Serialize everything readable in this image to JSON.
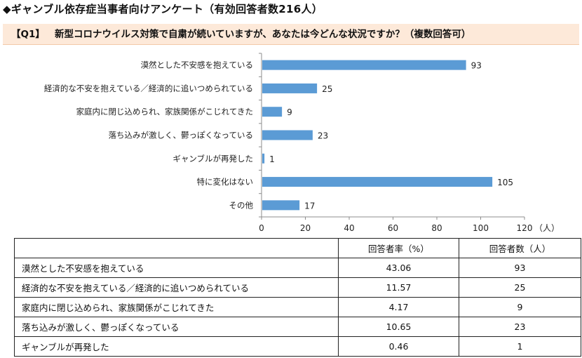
{
  "page": {
    "title": "◆ギャンブル依存症当事者向けアンケート（有効回答者数216人）",
    "question_label": "【Q1】",
    "question_text": "新型コロナウイルス対策で自粛が続いていますが、あなたは今どんな状況ですか？（複数回答可）"
  },
  "chart_data": {
    "type": "bar",
    "orientation": "horizontal",
    "categories": [
      "漠然とした不安感を抱えている",
      "経済的な不安を抱えている／経済的に追いつめられている",
      "家庭内に閉じ込められ、家族関係がこじれてきた",
      "落ち込みが激しく、鬱っぽくなっている",
      "ギャンブルが再発した",
      "特に変化はない",
      "その他"
    ],
    "values": [
      93,
      25,
      9,
      23,
      1,
      105,
      17
    ],
    "xlim": [
      0,
      120
    ],
    "xticks": [
      "0",
      "20",
      "40",
      "60",
      "80",
      "100",
      "120"
    ],
    "xunit": "（人）",
    "bar_color": "#5b9bd5",
    "grid": false
  },
  "table": {
    "headers": [
      "",
      "回答者率（%）",
      "回答者数（人）"
    ],
    "rows": [
      {
        "label": "漠然とした不安感を抱えている",
        "rate": "43.06",
        "count": "93"
      },
      {
        "label": "経済的な不安を抱えている／経済的に追いつめられている",
        "rate": "11.57",
        "count": "25"
      },
      {
        "label": "家庭内に閉じ込められ、家族関係がこじれてきた",
        "rate": "4.17",
        "count": "9"
      },
      {
        "label": "落ち込みが激しく、鬱っぽくなっている",
        "rate": "10.65",
        "count": "23"
      },
      {
        "label": "ギャンブルが再発した",
        "rate": "0.46",
        "count": "1"
      }
    ]
  }
}
